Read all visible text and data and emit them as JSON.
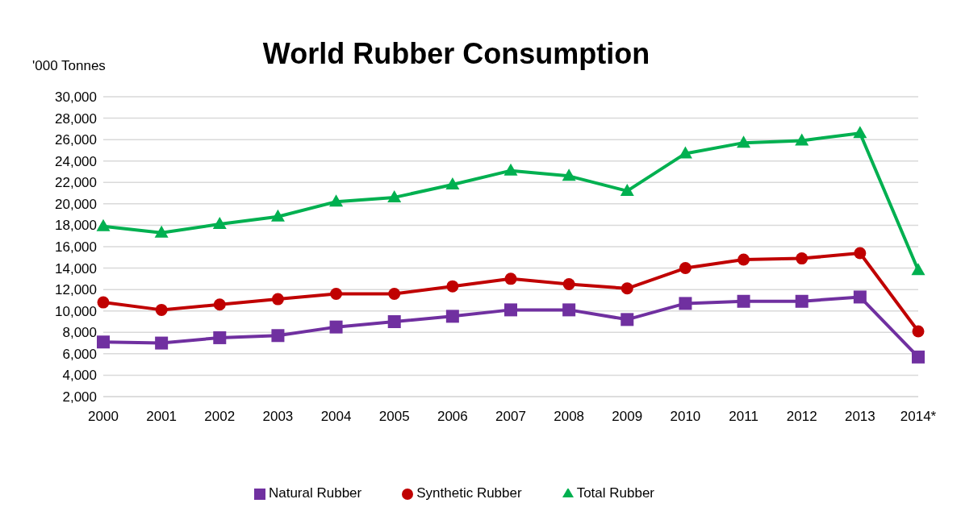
{
  "chart_data": {
    "type": "line",
    "title": "World Rubber Consumption",
    "ylabel": "'000 Tonnes",
    "categories": [
      "2000",
      "2001",
      "2002",
      "2003",
      "2004",
      "2005",
      "2006",
      "2007",
      "2008",
      "2009",
      "2010",
      "2011",
      "2012",
      "2013",
      "2014*"
    ],
    "series": [
      {
        "name": "Natural Rubber",
        "color": "#7030a0",
        "marker": "square",
        "values": [
          7100,
          7000,
          7500,
          7700,
          8500,
          9000,
          9500,
          10100,
          10100,
          9200,
          10700,
          10900,
          10900,
          11300,
          5700
        ]
      },
      {
        "name": "Synthetic Rubber",
        "color": "#c00000",
        "marker": "circle",
        "values": [
          10800,
          10100,
          10600,
          11100,
          11600,
          11600,
          12300,
          13000,
          12500,
          12100,
          14000,
          14800,
          14900,
          15400,
          8100
        ]
      },
      {
        "name": "Total Rubber",
        "color": "#00b050",
        "marker": "triangle",
        "values": [
          17900,
          17300,
          18100,
          18800,
          20200,
          20600,
          21800,
          23100,
          22600,
          21200,
          24700,
          25700,
          25900,
          26600,
          13800
        ]
      }
    ],
    "ylim": [
      2000,
      30000
    ],
    "yticks": [
      {
        "value": 2000,
        "label": "2,000"
      },
      {
        "value": 4000,
        "label": "4,000"
      },
      {
        "value": 6000,
        "label": "6,000"
      },
      {
        "value": 8000,
        "label": "8,000"
      },
      {
        "value": 10000,
        "label": "10,000"
      },
      {
        "value": 12000,
        "label": "12,000"
      },
      {
        "value": 14000,
        "label": "14,000"
      },
      {
        "value": 16000,
        "label": "16,000"
      },
      {
        "value": 18000,
        "label": "18,000"
      },
      {
        "value": 20000,
        "label": "20,000"
      },
      {
        "value": 22000,
        "label": "22,000"
      },
      {
        "value": 24000,
        "label": "24,000"
      },
      {
        "value": 26000,
        "label": "26,000"
      },
      {
        "value": 28000,
        "label": "28,000"
      },
      {
        "value": 30000,
        "label": "30,000"
      }
    ],
    "grid": "y",
    "legend": "bottom",
    "line_style": "solid"
  }
}
